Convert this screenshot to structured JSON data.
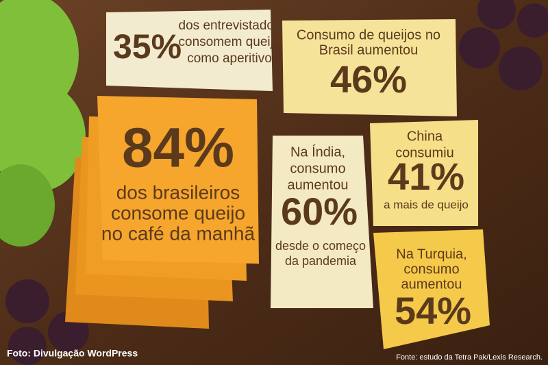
{
  "panels": [
    {
      "percent": "35%",
      "text": [
        "dos entrevistados",
        "consomem queijo",
        "como aperitivo"
      ]
    },
    {
      "text": [
        "Consumo de queijos no",
        "Brasil aumentou"
      ],
      "percent": "46%"
    },
    {
      "percent": "84%",
      "text": [
        "dos brasileiros",
        "consome queijo",
        "no café da manhã"
      ]
    },
    {
      "text": [
        "Na Índia,",
        "consumo",
        "aumentou"
      ],
      "percent": "60%",
      "note": [
        "desde o começo",
        "da pandemia"
      ]
    },
    {
      "text": [
        "China",
        "consumiu"
      ],
      "percent": "41%",
      "note": [
        "a mais de queijo"
      ]
    },
    {
      "text": [
        "Na Turquia,",
        "consumo",
        "aumentou"
      ],
      "percent": "54%"
    }
  ],
  "credits": {
    "photo": "Foto: Divulgação WordPress",
    "source": "Fonte: estudo da Tetra Pak/Lexis Research."
  }
}
